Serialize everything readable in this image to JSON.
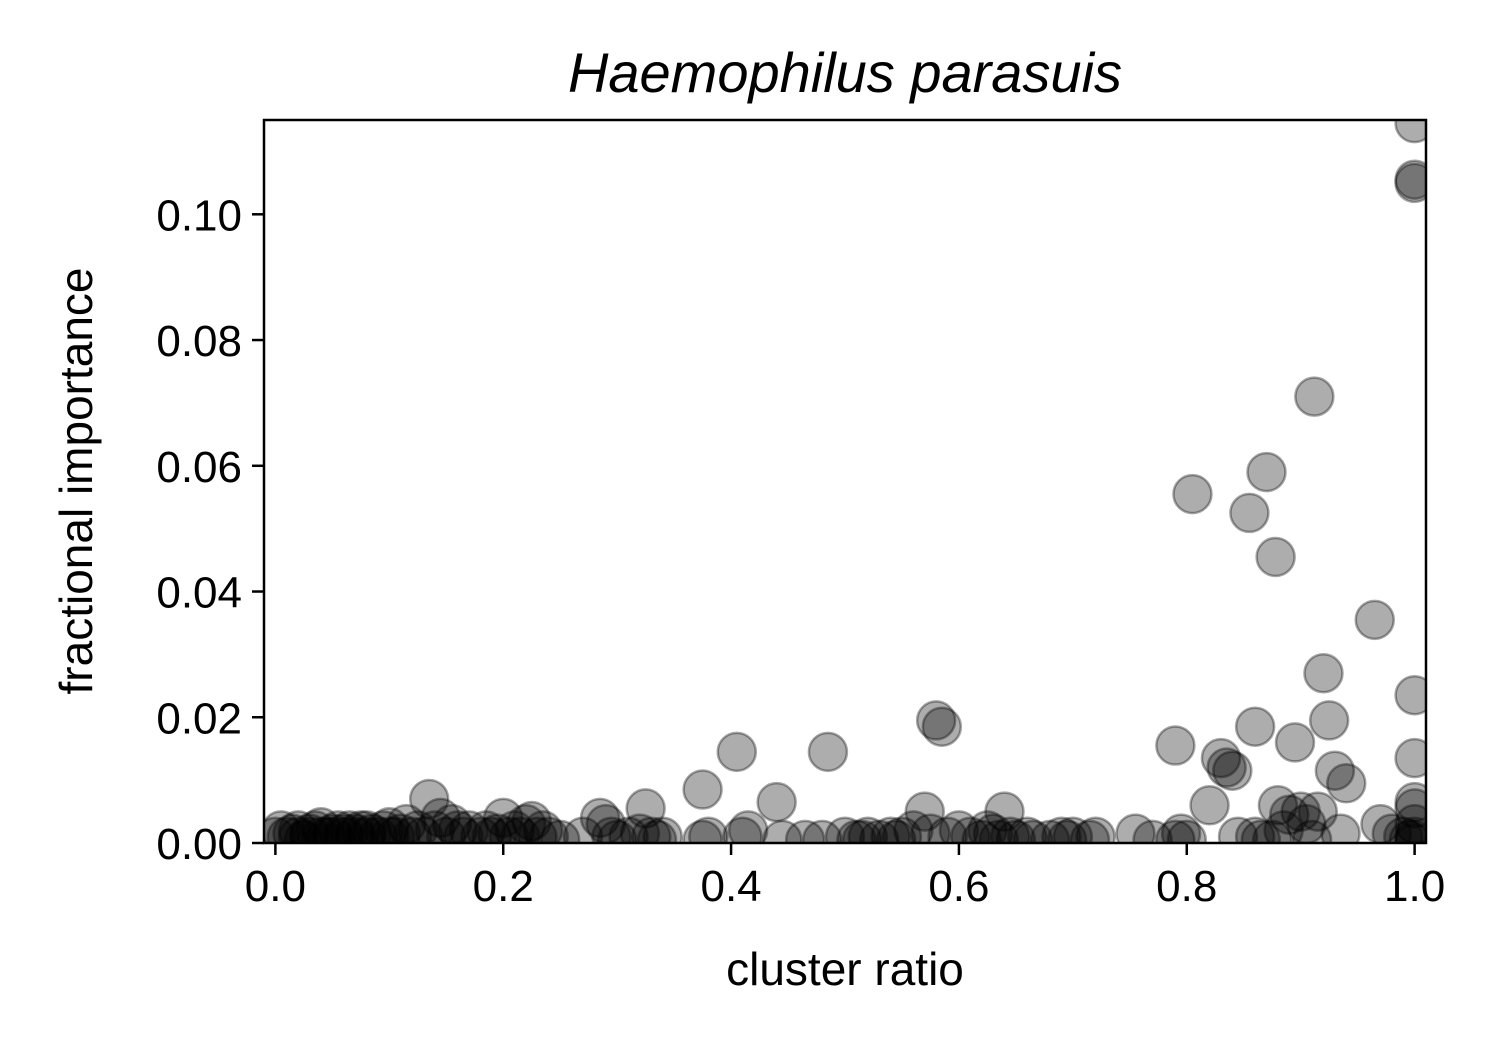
{
  "chart_data": {
    "type": "scatter",
    "title": "Haemophilus parasuis",
    "xlabel": "cluster ratio",
    "ylabel": "fractional importance",
    "xlim": [
      -0.01,
      1.01
    ],
    "ylim": [
      0,
      0.115
    ],
    "xticks": [
      "0.0",
      "0.2",
      "0.4",
      "0.6",
      "0.8",
      "1.0"
    ],
    "xtick_values": [
      0,
      0.2,
      0.4,
      0.6,
      0.8,
      1.0
    ],
    "yticks": [
      "0.00",
      "0.02",
      "0.04",
      "0.06",
      "0.08",
      "0.10"
    ],
    "ytick_values": [
      0,
      0.02,
      0.04,
      0.06,
      0.08,
      0.1
    ],
    "grid": false,
    "marker_color": "#000000",
    "marker_alpha": 0.32,
    "points": [
      {
        "x": 0.0,
        "y": 0.001
      },
      {
        "x": 0.005,
        "y": 0.002
      },
      {
        "x": 0.01,
        "y": 0.001
      },
      {
        "x": 0.015,
        "y": 0.0015
      },
      {
        "x": 0.02,
        "y": 0.001
      },
      {
        "x": 0.02,
        "y": 0.002
      },
      {
        "x": 0.025,
        "y": 0.0005
      },
      {
        "x": 0.03,
        "y": 0.0015
      },
      {
        "x": 0.03,
        "y": 0.001
      },
      {
        "x": 0.035,
        "y": 0.002
      },
      {
        "x": 0.04,
        "y": 0.001
      },
      {
        "x": 0.04,
        "y": 0.0025
      },
      {
        "x": 0.045,
        "y": 0.001
      },
      {
        "x": 0.05,
        "y": 0.0015
      },
      {
        "x": 0.05,
        "y": 0.001
      },
      {
        "x": 0.055,
        "y": 0.002
      },
      {
        "x": 0.06,
        "y": 0.001
      },
      {
        "x": 0.06,
        "y": 0.0015
      },
      {
        "x": 0.065,
        "y": 0.002
      },
      {
        "x": 0.07,
        "y": 0.001
      },
      {
        "x": 0.07,
        "y": 0.0015
      },
      {
        "x": 0.075,
        "y": 0.002
      },
      {
        "x": 0.08,
        "y": 0.001
      },
      {
        "x": 0.08,
        "y": 0.002
      },
      {
        "x": 0.085,
        "y": 0.0015
      },
      {
        "x": 0.09,
        "y": 0.001
      },
      {
        "x": 0.095,
        "y": 0.002
      },
      {
        "x": 0.1,
        "y": 0.001
      },
      {
        "x": 0.1,
        "y": 0.0025
      },
      {
        "x": 0.105,
        "y": 0.001
      },
      {
        "x": 0.11,
        "y": 0.0015
      },
      {
        "x": 0.115,
        "y": 0.003
      },
      {
        "x": 0.12,
        "y": 0.001
      },
      {
        "x": 0.125,
        "y": 0.002
      },
      {
        "x": 0.13,
        "y": 0.001
      },
      {
        "x": 0.135,
        "y": 0.007
      },
      {
        "x": 0.14,
        "y": 0.002
      },
      {
        "x": 0.145,
        "y": 0.004
      },
      {
        "x": 0.15,
        "y": 0.001
      },
      {
        "x": 0.155,
        "y": 0.003
      },
      {
        "x": 0.16,
        "y": 0.002
      },
      {
        "x": 0.165,
        "y": 0.001
      },
      {
        "x": 0.17,
        "y": 0.002
      },
      {
        "x": 0.18,
        "y": 0.001
      },
      {
        "x": 0.185,
        "y": 0.002
      },
      {
        "x": 0.19,
        "y": 0.001
      },
      {
        "x": 0.195,
        "y": 0.0015
      },
      {
        "x": 0.2,
        "y": 0.004
      },
      {
        "x": 0.205,
        "y": 0.001
      },
      {
        "x": 0.21,
        "y": 0.002
      },
      {
        "x": 0.215,
        "y": 0.001
      },
      {
        "x": 0.22,
        "y": 0.003
      },
      {
        "x": 0.225,
        "y": 0.0035
      },
      {
        "x": 0.23,
        "y": 0.001
      },
      {
        "x": 0.235,
        "y": 0.002
      },
      {
        "x": 0.24,
        "y": 0.001
      },
      {
        "x": 0.25,
        "y": 0.0005
      },
      {
        "x": 0.27,
        "y": 0.001
      },
      {
        "x": 0.285,
        "y": 0.004
      },
      {
        "x": 0.29,
        "y": 0.003
      },
      {
        "x": 0.295,
        "y": 0.001
      },
      {
        "x": 0.3,
        "y": 0.0005
      },
      {
        "x": 0.31,
        "y": 0.001
      },
      {
        "x": 0.32,
        "y": 0.0015
      },
      {
        "x": 0.325,
        "y": 0.0055
      },
      {
        "x": 0.33,
        "y": 0.001
      },
      {
        "x": 0.335,
        "y": 0.0005
      },
      {
        "x": 0.34,
        "y": 0.001
      },
      {
        "x": 0.375,
        "y": 0.0085
      },
      {
        "x": 0.375,
        "y": 0.0005
      },
      {
        "x": 0.38,
        "y": 0.001
      },
      {
        "x": 0.405,
        "y": 0.0145
      },
      {
        "x": 0.41,
        "y": 0.001
      },
      {
        "x": 0.415,
        "y": 0.002
      },
      {
        "x": 0.44,
        "y": 0.0065
      },
      {
        "x": 0.445,
        "y": 0.0005
      },
      {
        "x": 0.465,
        "y": 0.0005
      },
      {
        "x": 0.48,
        "y": 0.0005
      },
      {
        "x": 0.485,
        "y": 0.0145
      },
      {
        "x": 0.5,
        "y": 0.001
      },
      {
        "x": 0.51,
        "y": 0.0005
      },
      {
        "x": 0.515,
        "y": 0.0005
      },
      {
        "x": 0.52,
        "y": 0.001
      },
      {
        "x": 0.53,
        "y": 0.0005
      },
      {
        "x": 0.54,
        "y": 0.001
      },
      {
        "x": 0.545,
        "y": 0.0005
      },
      {
        "x": 0.55,
        "y": 0.001
      },
      {
        "x": 0.56,
        "y": 0.002
      },
      {
        "x": 0.57,
        "y": 0.005
      },
      {
        "x": 0.575,
        "y": 0.0015
      },
      {
        "x": 0.58,
        "y": 0.0195
      },
      {
        "x": 0.585,
        "y": 0.0185
      },
      {
        "x": 0.59,
        "y": 0.001
      },
      {
        "x": 0.6,
        "y": 0.002
      },
      {
        "x": 0.61,
        "y": 0.001
      },
      {
        "x": 0.62,
        "y": 0.0005
      },
      {
        "x": 0.625,
        "y": 0.002
      },
      {
        "x": 0.63,
        "y": 0.0015
      },
      {
        "x": 0.635,
        "y": 0.0005
      },
      {
        "x": 0.64,
        "y": 0.005
      },
      {
        "x": 0.645,
        "y": 0.001
      },
      {
        "x": 0.65,
        "y": 0.0005
      },
      {
        "x": 0.66,
        "y": 0.001
      },
      {
        "x": 0.665,
        "y": 0.0005
      },
      {
        "x": 0.68,
        "y": 0.0005
      },
      {
        "x": 0.69,
        "y": 0.001
      },
      {
        "x": 0.695,
        "y": 0.0005
      },
      {
        "x": 0.7,
        "y": 0.001
      },
      {
        "x": 0.715,
        "y": 0.0005
      },
      {
        "x": 0.72,
        "y": 0.001
      },
      {
        "x": 0.755,
        "y": 0.0015
      },
      {
        "x": 0.77,
        "y": 0.0005
      },
      {
        "x": 0.79,
        "y": 0.0005
      },
      {
        "x": 0.795,
        "y": 0.0015
      },
      {
        "x": 0.8,
        "y": 0.0005
      },
      {
        "x": 0.79,
        "y": 0.0155
      },
      {
        "x": 0.805,
        "y": 0.0555
      },
      {
        "x": 0.82,
        "y": 0.006
      },
      {
        "x": 0.83,
        "y": 0.0135
      },
      {
        "x": 0.835,
        "y": 0.012
      },
      {
        "x": 0.84,
        "y": 0.0115
      },
      {
        "x": 0.845,
        "y": 0.001
      },
      {
        "x": 0.855,
        "y": 0.0525
      },
      {
        "x": 0.86,
        "y": 0.0185
      },
      {
        "x": 0.86,
        "y": 0.001
      },
      {
        "x": 0.865,
        "y": 0.0005
      },
      {
        "x": 0.87,
        "y": 0.059
      },
      {
        "x": 0.875,
        "y": 0.0005
      },
      {
        "x": 0.878,
        "y": 0.0455
      },
      {
        "x": 0.88,
        "y": 0.006
      },
      {
        "x": 0.885,
        "y": 0.002
      },
      {
        "x": 0.89,
        "y": 0.0045
      },
      {
        "x": 0.895,
        "y": 0.016
      },
      {
        "x": 0.9,
        "y": 0.005
      },
      {
        "x": 0.905,
        "y": 0.003
      },
      {
        "x": 0.91,
        "y": 0.0005
      },
      {
        "x": 0.912,
        "y": 0.071
      },
      {
        "x": 0.915,
        "y": 0.005
      },
      {
        "x": 0.92,
        "y": 0.027
      },
      {
        "x": 0.925,
        "y": 0.0195
      },
      {
        "x": 0.93,
        "y": 0.0115
      },
      {
        "x": 0.935,
        "y": 0.0015
      },
      {
        "x": 0.94,
        "y": 0.0095
      },
      {
        "x": 0.965,
        "y": 0.0355
      },
      {
        "x": 0.97,
        "y": 0.003
      },
      {
        "x": 0.98,
        "y": 0.0015
      },
      {
        "x": 0.99,
        "y": 0.001
      },
      {
        "x": 0.995,
        "y": 0.0005
      },
      {
        "x": 1.0,
        "y": 0.1145
      },
      {
        "x": 1.0,
        "y": 0.1055
      },
      {
        "x": 1.0,
        "y": 0.105
      },
      {
        "x": 1.0,
        "y": 0.0235
      },
      {
        "x": 1.0,
        "y": 0.0135
      },
      {
        "x": 1.0,
        "y": 0.0065
      },
      {
        "x": 1.0,
        "y": 0.0055
      },
      {
        "x": 1.0,
        "y": 0.003
      },
      {
        "x": 1.0,
        "y": 0.001
      },
      {
        "x": 1.0,
        "y": 0.0005
      },
      {
        "x": 1.0,
        "y": 0.0
      }
    ]
  }
}
